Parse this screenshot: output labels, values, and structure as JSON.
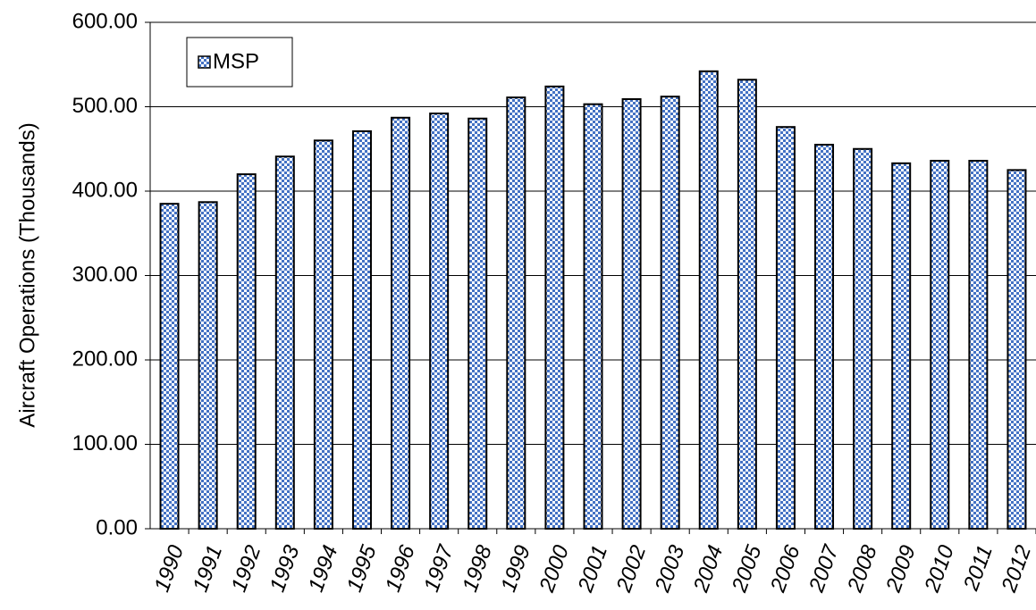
{
  "chart_data": {
    "type": "bar",
    "y_axis_label": "Aircraft Operations (Thousands)",
    "categories": [
      "1990",
      "1991",
      "1992",
      "1993",
      "1994",
      "1995",
      "1996",
      "1997",
      "1998",
      "1999",
      "2000",
      "2001",
      "2002",
      "2003",
      "2004",
      "2005",
      "2006",
      "2007",
      "2008",
      "2009",
      "2010",
      "2011",
      "2012"
    ],
    "series": [
      {
        "name": "MSP",
        "color": "#4472c4",
        "values": [
          385,
          387,
          420,
          441,
          460,
          471,
          487,
          492,
          486,
          511,
          524,
          503,
          509,
          512,
          542,
          532,
          476,
          455,
          450,
          433,
          436,
          436,
          425
        ]
      }
    ],
    "ylim": [
      0,
      600
    ],
    "yticks": [
      {
        "value": 0,
        "label": "0.00"
      },
      {
        "value": 100,
        "label": "100.00"
      },
      {
        "value": 200,
        "label": "200.00"
      },
      {
        "value": 300,
        "label": "300.00"
      },
      {
        "value": 400,
        "label": "400.00"
      },
      {
        "value": 500,
        "label": "500.00"
      },
      {
        "value": 600,
        "label": "600.00"
      }
    ],
    "grid": true,
    "legend_position": "upper-left"
  }
}
